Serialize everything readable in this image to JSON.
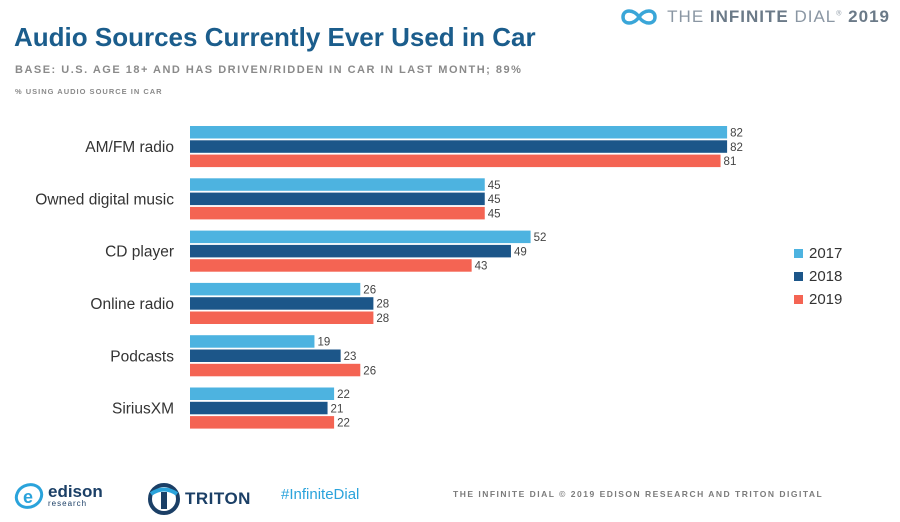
{
  "header": {
    "brand_prefix": "THE",
    "brand_highlight": "INFINITE",
    "brand_suffix": "DIAL",
    "brand_year": "2019",
    "brand_icon": "infinity-icon"
  },
  "chart_data": {
    "type": "bar",
    "orientation": "horizontal",
    "title": "Audio Sources Currently Ever Used in Car",
    "subtitle": "BASE: U.S. AGE 18+ AND HAS DRIVEN/RIDDEN IN CAR IN LAST MONTH; 89%",
    "note": "% USING AUDIO SOURCE IN CAR",
    "categories": [
      "AM/FM radio",
      "Owned digital music",
      "CD player",
      "Online radio",
      "Podcasts",
      "SiriusXM"
    ],
    "series": [
      {
        "name": "2017",
        "color": "#4db3e0",
        "values": [
          82,
          45,
          52,
          26,
          19,
          22
        ]
      },
      {
        "name": "2018",
        "color": "#1c5689",
        "values": [
          82,
          45,
          49,
          28,
          23,
          21
        ]
      },
      {
        "name": "2019",
        "color": "#f46453",
        "values": [
          81,
          45,
          43,
          28,
          26,
          22
        ]
      }
    ],
    "xlim": [
      0,
      100
    ],
    "grid": false,
    "legend_position": "right"
  },
  "footer": {
    "edison_name": "edison",
    "edison_sub": "research",
    "triton_name": "TRITON",
    "hashtag": "#InfiniteDial",
    "copyright": "THE INFINITE DIAL   © 2019 EDISON RESEARCH AND TRITON DIGITAL"
  }
}
